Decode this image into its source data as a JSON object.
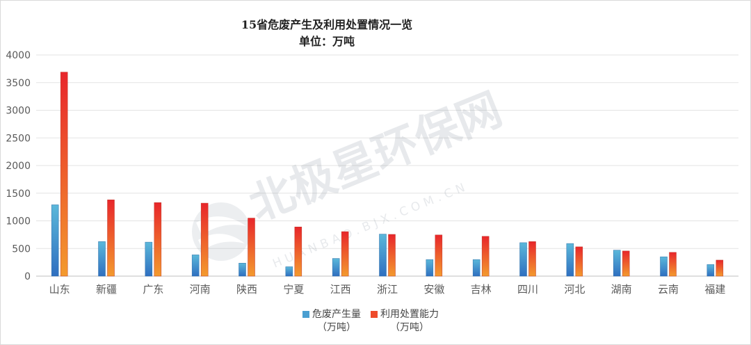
{
  "chart_data": {
    "type": "bar",
    "title": "15省危废产生及利用处置情况一览",
    "subtitle": "单位：万吨",
    "categories": [
      "山东",
      "新疆",
      "广东",
      "河南",
      "陕西",
      "宁夏",
      "江西",
      "浙江",
      "安徽",
      "吉林",
      "四川",
      "河北",
      "湖南",
      "云南",
      "福建"
    ],
    "series": [
      {
        "name": "危废产生量",
        "unit": "（万吨）",
        "color": "#4a9fd1",
        "values": [
          1290,
          625,
          615,
          385,
          235,
          170,
          320,
          760,
          300,
          300,
          605,
          590,
          470,
          350,
          210
        ]
      },
      {
        "name": "利用处置能力",
        "unit": "（万吨）",
        "color": "#ee4b2b",
        "values": [
          3690,
          1380,
          1330,
          1320,
          1050,
          890,
          805,
          755,
          745,
          720,
          625,
          530,
          455,
          430,
          290
        ]
      }
    ],
    "yticks": [
      0,
      500,
      1000,
      1500,
      2000,
      2500,
      3000,
      3500,
      4000
    ],
    "ylim": [
      0,
      4000
    ],
    "grid": true,
    "legend_position": "bottom"
  },
  "watermark": {
    "text": "北极星环保网",
    "subtext": "HUANBAO.BJX.COM.CN"
  }
}
